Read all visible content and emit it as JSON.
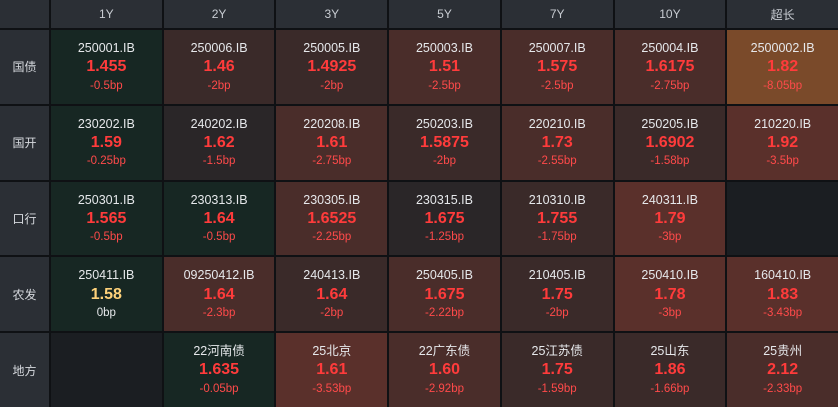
{
  "columns": [
    "1Y",
    "2Y",
    "3Y",
    "5Y",
    "7Y",
    "10Y",
    "超长"
  ],
  "rows": [
    {
      "label": "国债",
      "cells": [
        {
          "code": "250001.IB",
          "yield": "1.455",
          "chg": "-0.5bp",
          "tone": "t0"
        },
        {
          "code": "250006.IB",
          "yield": "1.46",
          "chg": "-2bp",
          "tone": "t2"
        },
        {
          "code": "250005.IB",
          "yield": "1.4925",
          "chg": "-2bp",
          "tone": "t2"
        },
        {
          "code": "250003.IB",
          "yield": "1.51",
          "chg": "-2.5bp",
          "tone": "t3"
        },
        {
          "code": "250007.IB",
          "yield": "1.575",
          "chg": "-2.5bp",
          "tone": "t3"
        },
        {
          "code": "250004.IB",
          "yield": "1.6175",
          "chg": "-2.75bp",
          "tone": "t3"
        },
        {
          "code": "2500002.IB",
          "yield": "1.82",
          "chg": "-8.05bp",
          "tone": "t6"
        }
      ]
    },
    {
      "label": "国开",
      "cells": [
        {
          "code": "230202.IB",
          "yield": "1.59",
          "chg": "-0.25bp",
          "tone": "t0"
        },
        {
          "code": "240202.IB",
          "yield": "1.62",
          "chg": "-1.5bp",
          "tone": "t1"
        },
        {
          "code": "220208.IB",
          "yield": "1.61",
          "chg": "-2.75bp",
          "tone": "t3"
        },
        {
          "code": "250203.IB",
          "yield": "1.5875",
          "chg": "-2bp",
          "tone": "t2"
        },
        {
          "code": "220210.IB",
          "yield": "1.73",
          "chg": "-2.55bp",
          "tone": "t3"
        },
        {
          "code": "250205.IB",
          "yield": "1.6902",
          "chg": "-1.58bp",
          "tone": "t2"
        },
        {
          "code": "210220.IB",
          "yield": "1.92",
          "chg": "-3.5bp",
          "tone": "t4"
        }
      ]
    },
    {
      "label": "口行",
      "cells": [
        {
          "code": "250301.IB",
          "yield": "1.565",
          "chg": "-0.5bp",
          "tone": "t0"
        },
        {
          "code": "230313.IB",
          "yield": "1.64",
          "chg": "-0.5bp",
          "tone": "t0"
        },
        {
          "code": "230305.IB",
          "yield": "1.6525",
          "chg": "-2.25bp",
          "tone": "t3"
        },
        {
          "code": "230315.IB",
          "yield": "1.675",
          "chg": "-1.25bp",
          "tone": "t1"
        },
        {
          "code": "210310.IB",
          "yield": "1.755",
          "chg": "-1.75bp",
          "tone": "t2"
        },
        {
          "code": "240311.IB",
          "yield": "1.79",
          "chg": "-3bp",
          "tone": "t4"
        },
        {
          "code": "",
          "yield": "",
          "chg": "",
          "tone": "empty"
        }
      ]
    },
    {
      "label": "农发",
      "cells": [
        {
          "code": "250411.IB",
          "yield": "1.58",
          "chg": "0bp",
          "tone": "t0",
          "neutral": true
        },
        {
          "code": "09250412.IB",
          "yield": "1.64",
          "chg": "-2.3bp",
          "tone": "t3"
        },
        {
          "code": "240413.IB",
          "yield": "1.64",
          "chg": "-2bp",
          "tone": "t2"
        },
        {
          "code": "250405.IB",
          "yield": "1.675",
          "chg": "-2.22bp",
          "tone": "t3"
        },
        {
          "code": "210405.IB",
          "yield": "1.75",
          "chg": "-2bp",
          "tone": "t2"
        },
        {
          "code": "250410.IB",
          "yield": "1.78",
          "chg": "-3bp",
          "tone": "t4"
        },
        {
          "code": "160410.IB",
          "yield": "1.83",
          "chg": "-3.43bp",
          "tone": "t4"
        }
      ]
    },
    {
      "label": "地方",
      "cells": [
        {
          "code": "",
          "yield": "",
          "chg": "",
          "tone": "empty"
        },
        {
          "code": "22河南债",
          "yield": "1.635",
          "chg": "-0.05bp",
          "tone": "t0"
        },
        {
          "code": "25北京",
          "yield": "1.61",
          "chg": "-3.53bp",
          "tone": "t4"
        },
        {
          "code": "22广东债",
          "yield": "1.60",
          "chg": "-2.92bp",
          "tone": "t3"
        },
        {
          "code": "25江苏债",
          "yield": "1.75",
          "chg": "-1.59bp",
          "tone": "t2"
        },
        {
          "code": "25山东",
          "yield": "1.86",
          "chg": "-1.66bp",
          "tone": "t2"
        },
        {
          "code": "25贵州",
          "yield": "2.12",
          "chg": "-2.33bp",
          "tone": "t3"
        }
      ]
    }
  ]
}
